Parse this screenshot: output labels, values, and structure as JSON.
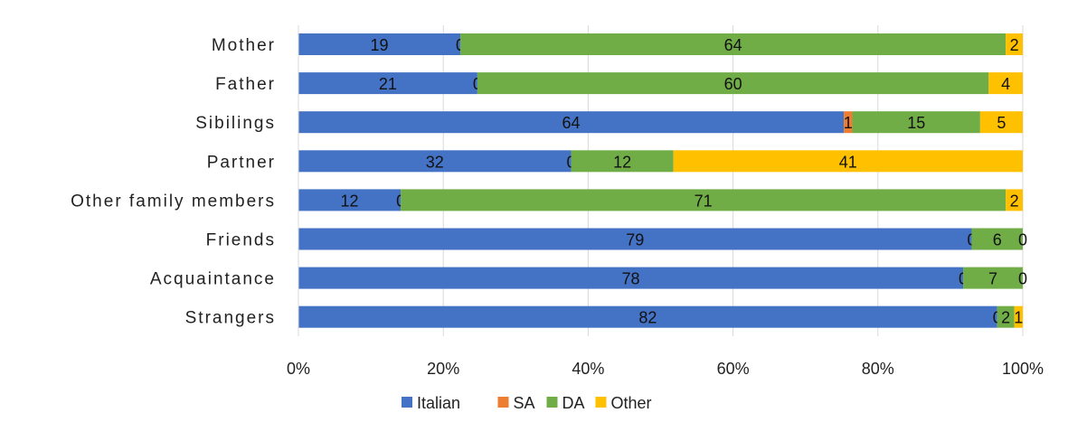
{
  "chart_data": {
    "type": "bar",
    "orientation": "horizontal",
    "stacking": "percent",
    "title": "",
    "xlabel": "",
    "ylabel": "",
    "categories": [
      "Mother",
      "Father",
      "Sibilings",
      "Partner",
      "Other family members",
      "Friends",
      "Acquaintance",
      "Strangers"
    ],
    "series": [
      {
        "name": "Italian",
        "color": "#4472C4",
        "values": [
          19,
          21,
          64,
          32,
          12,
          79,
          78,
          82
        ]
      },
      {
        "name": "SA",
        "color": "#ED7D31",
        "values": [
          0,
          0,
          1,
          0,
          0,
          0,
          0,
          0
        ]
      },
      {
        "name": "DA",
        "color": "#70AD47",
        "values": [
          64,
          60,
          15,
          12,
          71,
          6,
          7,
          2
        ]
      },
      {
        "name": "Other",
        "color": "#FFC000",
        "values": [
          2,
          4,
          5,
          41,
          2,
          0,
          0,
          1
        ]
      }
    ],
    "xlim": [
      0,
      100
    ],
    "xticks": [
      "0%",
      "20%",
      "40%",
      "60%",
      "80%",
      "100%"
    ],
    "grid": true,
    "legend_position": "bottom"
  }
}
